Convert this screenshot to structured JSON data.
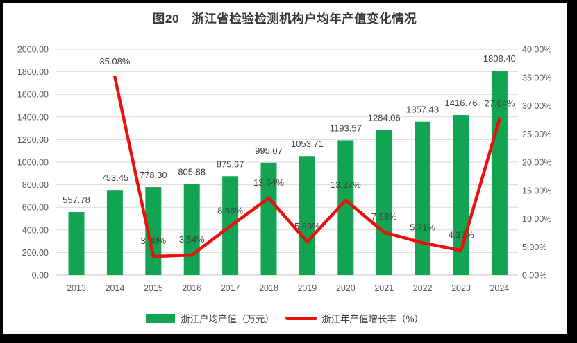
{
  "page": {
    "title": "图20　浙江省检验检测机构户均年产值变化情况"
  },
  "colors": {
    "bar": "#12a452",
    "line": "#ea100c",
    "grid": "#d9d9d9",
    "baseline": "#c6c6c6",
    "axis_text": "#595959",
    "data_label_text": "#404040",
    "title_text": "#383838",
    "frame": "#000000",
    "background": "#ffffff"
  },
  "chart_data": {
    "type": "bar+line combo",
    "title": "图20　浙江省检验检测机构户均年产值变化情况",
    "categories": [
      "2013",
      "2014",
      "2015",
      "2016",
      "2017",
      "2018",
      "2019",
      "2020",
      "2021",
      "2022",
      "2023",
      "2024"
    ],
    "series": [
      {
        "name": "浙江户均产值（万元）",
        "type": "bar",
        "axis": "left",
        "values": [
          557.78,
          753.45,
          778.3,
          805.88,
          875.67,
          995.07,
          1053.71,
          1193.57,
          1284.06,
          1357.43,
          1416.76,
          1808.4
        ],
        "labels": [
          "557.78",
          "753.45",
          "778.30",
          "805.88",
          "875.67",
          "995.07",
          "1053.71",
          "1193.57",
          "1284.06",
          "1357.43",
          "1416.76",
          "1808.40"
        ]
      },
      {
        "name": "浙江年产值增长率（%）",
        "type": "line",
        "axis": "right",
        "values": [
          null,
          35.08,
          3.3,
          3.54,
          8.66,
          13.64,
          5.89,
          13.27,
          7.58,
          5.71,
          4.37,
          27.64
        ],
        "labels": [
          "",
          "35.08%",
          "3.30%",
          "3.54%",
          "8.66%",
          "13.64%",
          "5.89%",
          "13.27%",
          "7.58%",
          "5.71%",
          "4.37%",
          "27.64%"
        ]
      }
    ],
    "left_axis": {
      "min": 0,
      "max": 2000,
      "step": 200,
      "ticks": [
        "0.00",
        "200.00",
        "400.00",
        "600.00",
        "800.00",
        "1000.00",
        "1200.00",
        "1400.00",
        "1600.00",
        "1800.00",
        "2000.00"
      ]
    },
    "right_axis": {
      "min": 0,
      "max": 40,
      "step": 5,
      "ticks": [
        "0.00%",
        "5.00%",
        "10.00%",
        "15.00%",
        "20.00%",
        "25.00%",
        "30.00%",
        "35.00%",
        "40.00%"
      ]
    },
    "grid": true,
    "legend_position": "bottom"
  }
}
